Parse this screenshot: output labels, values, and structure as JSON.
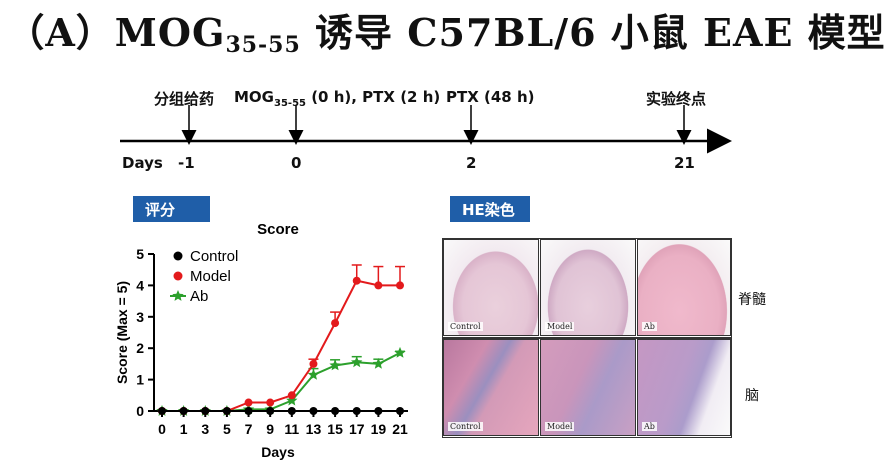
{
  "title": {
    "prefix": "（A）MOG",
    "subscript": "35-55",
    "suffix": " 诱导 C57BL/6 小鼠 EAE 模型"
  },
  "timeline": {
    "axis_label": "Days",
    "ticks": [
      "-1",
      "0",
      "2",
      "21"
    ],
    "events": {
      "dosing": "分组给药",
      "mog_prefix": "MOG",
      "mog_sub": "35-55",
      "mog_suffix": " (0 h), PTX (2 h)",
      "ptx48": "PTX (48 h)",
      "endpoint": "实验终点"
    }
  },
  "tags": {
    "score": "评分",
    "he": "HE染色"
  },
  "he": {
    "row_labels": [
      "脊髓",
      "脑"
    ],
    "col_labels": [
      "Control",
      "Model",
      "Ab"
    ]
  },
  "colors": {
    "control": "#000000",
    "model": "#e31a1c",
    "ab": "#2ca02c",
    "tag_bg": "#1f5ea8"
  },
  "chart_data": {
    "type": "line",
    "title": "Score",
    "xlabel": "Days",
    "ylabel": "Score (Max = 5)",
    "ylim": [
      0,
      5
    ],
    "yticks": [
      "0",
      "1",
      "2",
      "3",
      "4",
      "5"
    ],
    "categories": [
      "0",
      "1",
      "3",
      "5",
      "7",
      "9",
      "11",
      "13",
      "15",
      "17",
      "19",
      "21"
    ],
    "legend_position": "top-left",
    "series": [
      {
        "name": "Control",
        "color": "#000000",
        "marker": "circle",
        "values": [
          0,
          0,
          0,
          0,
          0,
          0,
          0,
          0,
          0,
          0,
          0,
          0
        ],
        "errors": [
          0,
          0,
          0,
          0,
          0,
          0,
          0,
          0,
          0,
          0,
          0,
          0
        ]
      },
      {
        "name": "Model",
        "color": "#e31a1c",
        "marker": "circle",
        "values": [
          0,
          0,
          0,
          0,
          0.27,
          0.27,
          0.5,
          1.5,
          2.8,
          4.15,
          4.0,
          4.0
        ],
        "errors": [
          0,
          0,
          0,
          0,
          0,
          0,
          0,
          0.15,
          0.35,
          0.5,
          0.6,
          0.6
        ]
      },
      {
        "name": "Ab",
        "color": "#2ca02c",
        "marker": "star",
        "values": [
          0,
          0,
          0,
          0,
          0.05,
          0.05,
          0.33,
          1.15,
          1.45,
          1.55,
          1.5,
          1.85
        ],
        "errors": [
          0,
          0,
          0,
          0,
          0,
          0,
          0,
          0.2,
          0.18,
          0.18,
          0.15,
          0.05
        ]
      }
    ]
  }
}
